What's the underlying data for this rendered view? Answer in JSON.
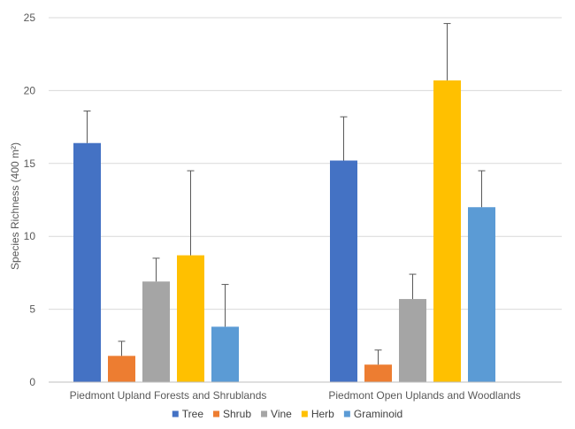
{
  "chart_data": {
    "type": "bar",
    "categories": [
      "Piedmont Upland Forests and Shrublands",
      "Piedmont Open Uplands and Woodlands"
    ],
    "series": [
      {
        "name": "Tree",
        "color": "#4472c4",
        "values": [
          16.4,
          15.2
        ],
        "errors": [
          2.2,
          3.0
        ]
      },
      {
        "name": "Shrub",
        "color": "#ed7d31",
        "values": [
          1.8,
          1.2
        ],
        "errors": [
          1.0,
          1.0
        ]
      },
      {
        "name": "Vine",
        "color": "#a5a5a5",
        "values": [
          6.9,
          5.7
        ],
        "errors": [
          1.6,
          1.7
        ]
      },
      {
        "name": "Herb",
        "color": "#ffc000",
        "values": [
          8.7,
          20.7
        ],
        "errors": [
          5.8,
          3.9
        ]
      },
      {
        "name": "Graminoid",
        "color": "#5b9bd5",
        "values": [
          3.8,
          12.0
        ],
        "errors": [
          2.9,
          2.5
        ]
      }
    ],
    "ylabel": "Species Richness (400 m²)",
    "xlabel": "",
    "ylim": [
      0,
      25
    ],
    "yticks": [
      "0",
      "5",
      "10",
      "15",
      "20",
      "25"
    ],
    "grid": true,
    "legend": "bottom"
  }
}
